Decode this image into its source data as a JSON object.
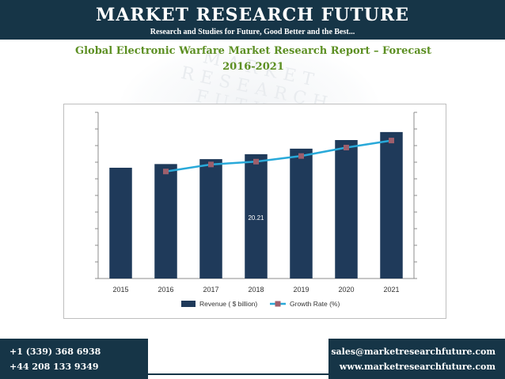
{
  "header": {
    "brand": "MARKET RESEARCH FUTURE",
    "tagline": "Research and Studies for Future, Good Better and the Best..."
  },
  "watermark": "MARKET RESEARCH FUTURE",
  "title_line1": "Global Electronic Warfare Market Research Report – Forecast",
  "title_line2": "2016-2021",
  "chart_data": {
    "type": "bar",
    "title": "Global Electronic Warfare Market Research Report – Forecast 2016-2021",
    "categories": [
      "2015",
      "2016",
      "2017",
      "2018",
      "2019",
      "2020",
      "2021"
    ],
    "series": [
      {
        "name": "Revenue ( $ billion)",
        "type": "bar",
        "color": "#1f3a5a",
        "values": [
          18.0,
          18.6,
          19.4,
          20.2,
          21.1,
          22.5,
          23.8
        ]
      },
      {
        "name": "Growth Rate (%)",
        "type": "line",
        "color": "#29a9d9",
        "marker_color": "#9e5f6c",
        "values": [
          null,
          38.0,
          40.5,
          41.5,
          43.5,
          46.5,
          49.0
        ]
      }
    ],
    "annotation": "20.21",
    "ylim": [
      0,
      27
    ],
    "y2lim": [
      0,
      59
    ],
    "legend": "bottom",
    "grid": false
  },
  "footer": {
    "phone1": "+1 (339) 368 6938",
    "phone2": "+44 208 133 9349",
    "email": "sales@marketresearchfuture.com",
    "website": "www.marketresearchfuture.com"
  }
}
